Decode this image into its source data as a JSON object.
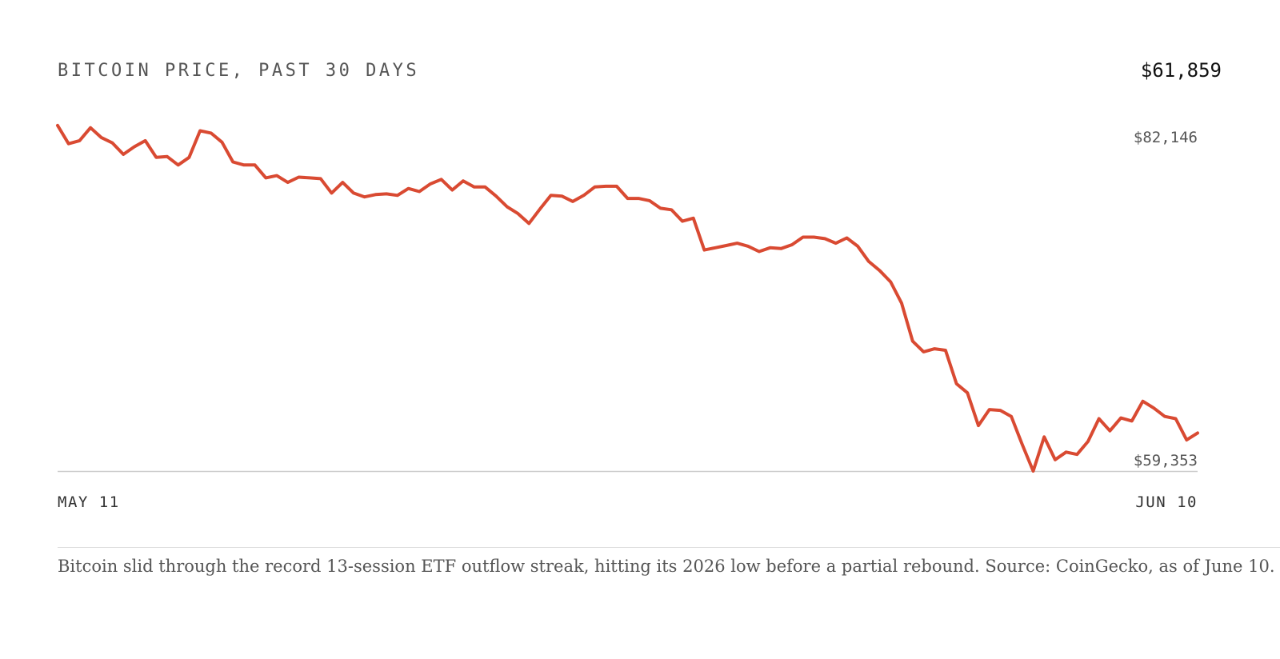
{
  "header": {
    "title": "BITCOIN PRICE, PAST 30 DAYS",
    "current_price": "$61,859"
  },
  "caption": "Bitcoin slid through the record 13-session ETF outflow streak, hitting its 2026 low before a partial rebound. Source: CoinGecko, as of June 10.",
  "colors": {
    "line": "#d94a32",
    "baseline": "#cccccc"
  },
  "chart_data": {
    "type": "line",
    "title": "BITCOIN PRICE, PAST 30 DAYS",
    "current_value_label": "$61,859",
    "x_start_label": "MAY 11",
    "x_end_label": "JUN 10",
    "max_label": "$82,146",
    "min_label": "$59,353",
    "ylim": [
      59353,
      82146
    ],
    "grid": false,
    "series": [
      {
        "values": [
          82100,
          80900,
          81100,
          81950,
          81300,
          80950,
          80200,
          80700,
          81100,
          80000,
          80050,
          79500,
          80000,
          81750,
          81600,
          81000,
          79700,
          79500,
          79500,
          78650,
          78800,
          78350,
          78700,
          78650,
          78600,
          77650,
          78350,
          77650,
          77400,
          77550,
          77600,
          77500,
          77950,
          77750,
          78250,
          78550,
          77850,
          78450,
          78050,
          78050,
          77450,
          76750,
          76300,
          75650,
          76600,
          77500,
          77450,
          77100,
          77500,
          78050,
          78100,
          78100,
          77300,
          77300,
          77150,
          76650,
          76550,
          75800,
          76000,
          73900,
          74050,
          74200,
          74350,
          74150,
          73800,
          74050,
          74000,
          74250,
          74750,
          74750,
          74650,
          74350,
          74700,
          74150,
          73150,
          72550,
          71800,
          70400,
          67900,
          67200,
          67400,
          67300,
          65100,
          64500,
          62350,
          63400,
          63350,
          62950,
          61100,
          59353,
          61600,
          60100,
          60600,
          60450,
          61300,
          62800,
          62000,
          62850,
          62650,
          63950,
          63500,
          62950,
          62800,
          61400,
          61859
        ]
      }
    ]
  }
}
